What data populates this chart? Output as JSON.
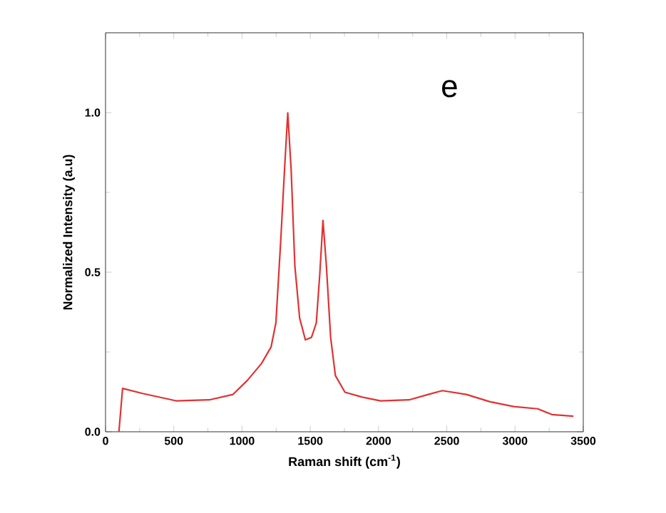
{
  "chart_data": {
    "type": "line",
    "xlabel": "Raman shift (cm$^{-1}$)",
    "ylabel": "Normalized Intensity (a.u)",
    "annotations": [
      "e"
    ],
    "xlim": [
      0,
      3500
    ],
    "xticks": [
      0,
      500,
      1000,
      1500,
      2000,
      2500,
      3000,
      3500
    ],
    "ylim": [
      0,
      1.25
    ],
    "yticks": [
      {
        "value": 0,
        "label": "0.0"
      },
      {
        "value": 0.5,
        "label": "0.5"
      },
      {
        "value": 1.0,
        "label": "1.0"
      }
    ],
    "grid": false,
    "marker": "none",
    "line_style": "solid",
    "series": [
      {
        "color": "#e03232",
        "x": [
          98,
          125,
          272,
          516,
          760,
          934,
          1039,
          1143,
          1213,
          1248,
          1283,
          1311,
          1335,
          1360,
          1387,
          1422,
          1464,
          1509,
          1544,
          1569,
          1593,
          1618,
          1649,
          1684,
          1754,
          1876,
          2015,
          2224,
          2364,
          2468,
          2643,
          2817,
          2991,
          3166,
          3270,
          3427
        ],
        "values": [
          0,
          0.136,
          0.12,
          0.097,
          0.1,
          0.117,
          0.161,
          0.214,
          0.266,
          0.341,
          0.595,
          0.819,
          0.999,
          0.819,
          0.52,
          0.356,
          0.288,
          0.296,
          0.341,
          0.49,
          0.662,
          0.52,
          0.296,
          0.176,
          0.124,
          0.109,
          0.097,
          0.1,
          0.117,
          0.129,
          0.117,
          0.094,
          0.079,
          0.072,
          0.054,
          0.049
        ]
      }
    ]
  }
}
